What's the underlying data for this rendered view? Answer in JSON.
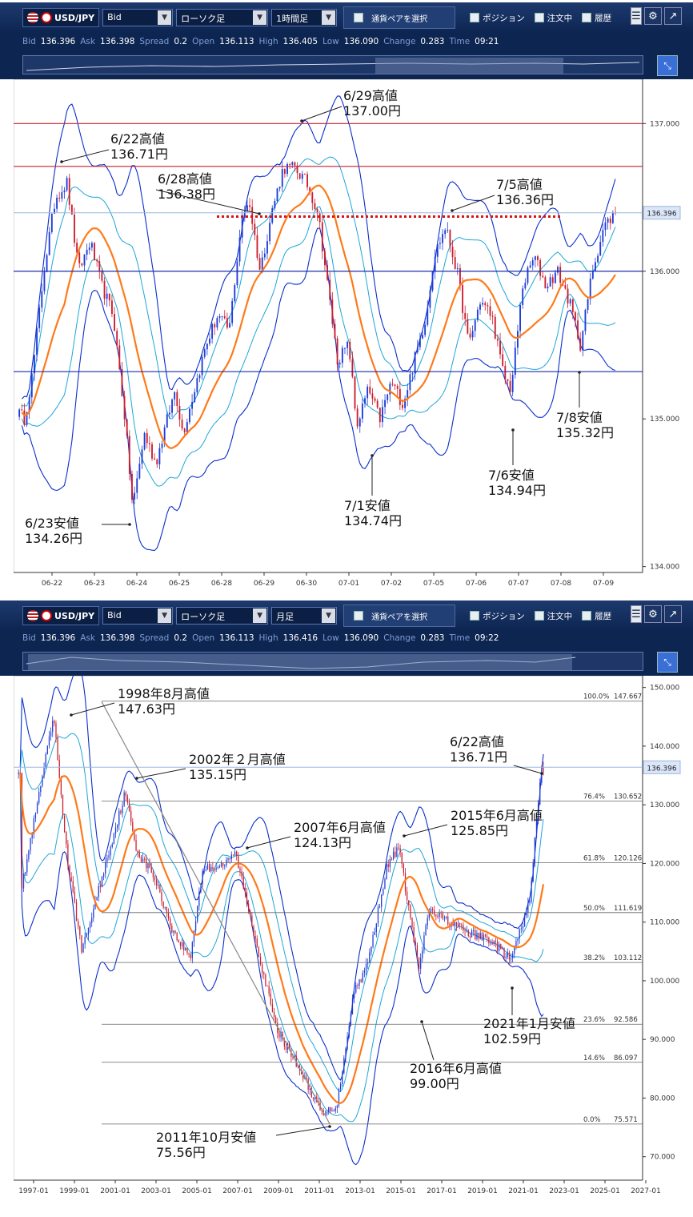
{
  "colors": {
    "upper_band": "#0a2fcc",
    "mid_band": "#1fa6d8",
    "ma": "#ff7a1a",
    "up_candle": "#1e3cd8",
    "down_candle": "#cc1e2e",
    "resist": "#cc1e2e",
    "support": "#1a2ea8",
    "dotted": "#dd1111",
    "fib": "#666666",
    "trend": "#888888"
  },
  "icons": [
    "us-flag-icon",
    "jp-flag-icon",
    "dropdown-icon",
    "menu-icon",
    "gear-icon",
    "external-link-icon",
    "scroll-zoom-icon"
  ],
  "top": {
    "toolbar": {
      "pair": "USD/JPY",
      "price_type": "Bid",
      "chart_type": "ローソク足",
      "timeframe": "1時間足",
      "currency_pair_button": "通貨ペアを選択",
      "position": "ポジション",
      "orders": "注文中",
      "history": "履歴"
    },
    "info": {
      "bid_label": "Bid",
      "bid": "136.396",
      "ask_label": "Ask",
      "ask": "136.398",
      "spread_label": "Spread",
      "spread": "0.2",
      "open_label": "Open",
      "open": "136.113",
      "high_label": "High",
      "high": "136.405",
      "low_label": "Low",
      "low": "136.090",
      "change_label": "Change",
      "change": "0.283",
      "time_label": "Time",
      "time": "09:21"
    },
    "current_price": "136.396"
  },
  "bottom": {
    "toolbar": {
      "pair": "USD/JPY",
      "price_type": "Bid",
      "chart_type": "ローソク足",
      "timeframe": "月足",
      "currency_pair_button": "通貨ペアを選択",
      "position": "ポジション",
      "orders": "注文中",
      "history": "履歴"
    },
    "info": {
      "bid_label": "Bid",
      "bid": "136.396",
      "ask_label": "Ask",
      "ask": "136.398",
      "spread_label": "Spread",
      "spread": "0.2",
      "open_label": "Open",
      "open": "136.113",
      "high_label": "High",
      "high": "136.416",
      "low_label": "Low",
      "low": "136.090",
      "change_label": "Change",
      "change": "0.283",
      "time_label": "Time",
      "time": "09:22"
    },
    "current_price": "136.396"
  },
  "chart_data": [
    {
      "type": "candlestick",
      "timeframe": "1時間足",
      "x_ticks": [
        "06-22",
        "06-23",
        "06-24",
        "06-25",
        "06-28",
        "06-29",
        "06-30",
        "07-01",
        "07-02",
        "07-05",
        "07-06",
        "07-07",
        "07-08",
        "07-09"
      ],
      "y_ticks": [
        134.0,
        135.0,
        136.0,
        137.0
      ],
      "ylim": [
        133.96,
        137.3
      ],
      "close_path": [
        [
          0,
          135.05
        ],
        [
          2,
          135.0
        ],
        [
          4,
          135.3
        ],
        [
          7,
          136.0
        ],
        [
          10,
          136.5
        ],
        [
          13,
          136.6
        ],
        [
          16,
          136.0
        ],
        [
          19,
          136.2
        ],
        [
          22,
          135.9
        ],
        [
          25,
          135.7
        ],
        [
          28,
          135.0
        ],
        [
          30,
          134.4
        ],
        [
          33,
          134.9
        ],
        [
          36,
          134.7
        ],
        [
          38,
          134.9
        ],
        [
          41,
          135.2
        ],
        [
          43,
          134.9
        ],
        [
          46,
          135.2
        ],
        [
          49,
          135.5
        ],
        [
          52,
          135.7
        ],
        [
          55,
          135.6
        ],
        [
          58,
          136.3
        ],
        [
          60,
          136.5
        ],
        [
          63,
          136.0
        ],
        [
          66,
          136.4
        ],
        [
          69,
          136.7
        ],
        [
          72,
          136.7
        ],
        [
          75,
          136.6
        ],
        [
          78,
          136.4
        ],
        [
          80,
          136.0
        ],
        [
          83,
          135.4
        ],
        [
          86,
          135.5
        ],
        [
          88,
          134.95
        ],
        [
          91,
          135.2
        ],
        [
          94,
          135.0
        ],
        [
          97,
          135.25
        ],
        [
          100,
          135.1
        ],
        [
          103,
          135.4
        ],
        [
          106,
          135.7
        ],
        [
          108,
          136.1
        ],
        [
          111,
          136.3
        ],
        [
          114,
          136.0
        ],
        [
          117,
          135.5
        ],
        [
          120,
          135.8
        ],
        [
          123,
          135.7
        ],
        [
          126,
          135.3
        ],
        [
          128,
          135.2
        ],
        [
          131,
          135.9
        ],
        [
          134,
          136.1
        ],
        [
          137,
          135.9
        ],
        [
          140,
          136.0
        ],
        [
          143,
          135.8
        ],
        [
          146,
          135.5
        ],
        [
          149,
          136.0
        ],
        [
          152,
          136.3
        ],
        [
          155,
          136.4
        ]
      ],
      "annotations": [
        {
          "text": "6/22高値",
          "value": "136.71円"
        },
        {
          "text": "6/29高値",
          "value": "137.00円"
        },
        {
          "text": "6/28高値",
          "value": "136.38円"
        },
        {
          "text": "7/5高値",
          "value": "136.36円"
        },
        {
          "text": "6/23安値",
          "value": "134.26円"
        },
        {
          "text": "7/1安値",
          "value": "134.74円"
        },
        {
          "text": "7/6安値",
          "value": "134.94円"
        },
        {
          "text": "7/8安値",
          "value": "135.32円"
        }
      ],
      "resistance_lines": [
        137.0,
        136.71
      ],
      "support_lines": [
        136.0,
        135.32
      ],
      "dotted_line": 136.37
    },
    {
      "type": "candlestick",
      "timeframe": "月足",
      "x_ticks": [
        "1997-01",
        "1999-01",
        "2001-01",
        "2003-01",
        "2005-01",
        "2007-01",
        "2009-01",
        "2011-01",
        "2013-01",
        "2015-01",
        "2017-01",
        "2019-01",
        "2021-01",
        "2023-01",
        "2025-01",
        "2027-01"
      ],
      "y_ticks": [
        70.0,
        80.0,
        90.0,
        100.0,
        110.0,
        120.0,
        130.0,
        140.0,
        150.0
      ],
      "ylim": [
        66,
        152
      ],
      "close_path": [
        [
          1997,
          115
        ],
        [
          1998.6,
          145
        ],
        [
          1999.3,
          120
        ],
        [
          2000,
          105
        ],
        [
          2001,
          118
        ],
        [
          2002.1,
          132
        ],
        [
          2002.7,
          122
        ],
        [
          2003.5,
          118
        ],
        [
          2004.5,
          108
        ],
        [
          2005.3,
          104
        ],
        [
          2005.9,
          119
        ],
        [
          2007.1,
          120
        ],
        [
          2007.5,
          122
        ],
        [
          2008.5,
          107
        ],
        [
          2009.5,
          92
        ],
        [
          2010.5,
          86
        ],
        [
          2011.8,
          77
        ],
        [
          2012.5,
          79
        ],
        [
          2013.3,
          98
        ],
        [
          2014,
          103
        ],
        [
          2014.9,
          119
        ],
        [
          2015.5,
          123
        ],
        [
          2016.5,
          102
        ],
        [
          2017,
          112
        ],
        [
          2018,
          110
        ],
        [
          2019,
          108
        ],
        [
          2020,
          107
        ],
        [
          2021,
          103.5
        ],
        [
          2021.9,
          113
        ],
        [
          2022.5,
          136
        ]
      ],
      "annotations": [
        {
          "text": "1998年8月高値",
          "value": "147.63円"
        },
        {
          "text": "2002年２月高値",
          "value": "135.15円"
        },
        {
          "text": "2007年6月高値",
          "value": "124.13円"
        },
        {
          "text": "2015年6月高値",
          "value": "125.85円"
        },
        {
          "text": "6/22高値",
          "value": "136.71円"
        },
        {
          "text": "2021年1月安値",
          "value": "102.59円"
        },
        {
          "text": "2016年6月高値",
          "value": "99.00円"
        },
        {
          "text": "2011年10月安値",
          "value": "75.56円"
        }
      ],
      "fibonacci": [
        {
          "label": "100.0%",
          "value": "147.667",
          "y": 147.667
        },
        {
          "label": "76.4%",
          "value": "130.652",
          "y": 130.652
        },
        {
          "label": "61.8%",
          "value": "120.126",
          "y": 120.126
        },
        {
          "label": "50.0%",
          "value": "111.619",
          "y": 111.619
        },
        {
          "label": "38.2%",
          "value": "103.112",
          "y": 103.112
        },
        {
          "label": "23.6%",
          "value": "92.586",
          "y": 92.586
        },
        {
          "label": "14.6%",
          "value": "86.097",
          "y": 86.097
        },
        {
          "label": "0.0%",
          "value": "75.571",
          "y": 75.571
        }
      ]
    }
  ]
}
